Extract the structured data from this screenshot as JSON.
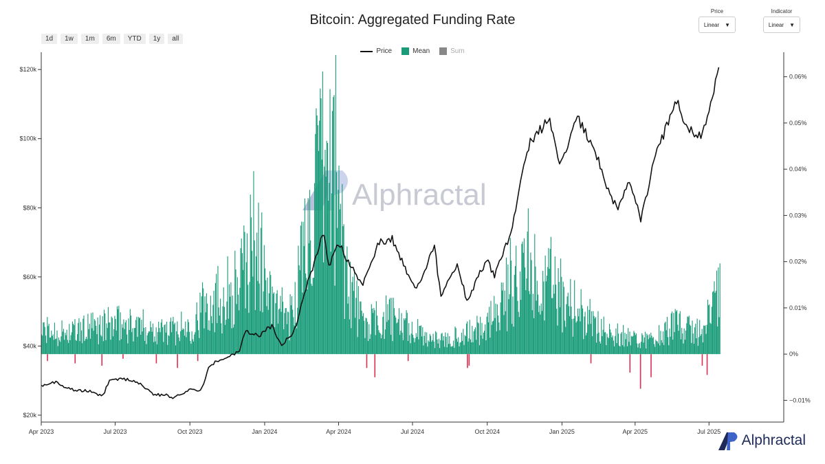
{
  "colors": {
    "price": "#111111",
    "positive": "#1a9c7a",
    "negative": "#dc2f50",
    "sum": "#888888",
    "axis": "#333333",
    "brand": "#1d2a5a"
  },
  "toolbar": {
    "ranges": [
      "1d",
      "1w",
      "1m",
      "6m",
      "YTD",
      "1y",
      "all"
    ]
  },
  "selectors": {
    "price": {
      "label": "Price",
      "value": "Linear",
      "arrow_icon": "triangle-down-icon"
    },
    "indicator": {
      "label": "Indicator",
      "value": "Linear",
      "arrow_icon": "triangle-down-icon"
    }
  },
  "watermark": {
    "text": "Alphractal"
  },
  "brand": {
    "text": "Alphractal",
    "icon": "alphractal-logo-icon"
  },
  "chart_data": {
    "type": "line+bar",
    "title": "Bitcoin: Aggregated Funding Rate",
    "legend": {
      "items": [
        "Price",
        "Mean",
        "Sum"
      ],
      "placement": "top-center",
      "inactive": [
        "Sum"
      ]
    },
    "x_ticks": [
      "Apr 2023",
      "Jul 2023",
      "Oct 2023",
      "Jan 2024",
      "Apr 2024",
      "Jul 2024",
      "Oct 2024",
      "Jan 2025",
      "Apr 2025",
      "Jul 2025"
    ],
    "x_range": [
      "2023-04-01",
      "2025-10-01"
    ],
    "y_left": {
      "ticks": [
        "$20k",
        "$40k",
        "$60k",
        "$80k",
        "$100k",
        "$120k"
      ],
      "range": [
        18000,
        125000
      ]
    },
    "y_right": {
      "ticks": [
        "−0.01%",
        "0%",
        "0.01%",
        "0.02%",
        "0.03%",
        "0.04%",
        "0.05%",
        "0.06%"
      ],
      "range": [
        -0.0147,
        0.0653
      ]
    },
    "grid": false,
    "series": [
      {
        "name": "Price",
        "kind": "line",
        "axis": "left",
        "unit": "USD",
        "points": [
          [
            "2023-04-01",
            28400
          ],
          [
            "2023-04-15",
            29800
          ],
          [
            "2023-05-01",
            28200
          ],
          [
            "2023-05-15",
            27000
          ],
          [
            "2023-06-01",
            27000
          ],
          [
            "2023-06-15",
            25300
          ],
          [
            "2023-06-25",
            30500
          ],
          [
            "2023-07-15",
            30300
          ],
          [
            "2023-08-01",
            29200
          ],
          [
            "2023-08-17",
            26000
          ],
          [
            "2023-09-01",
            25800
          ],
          [
            "2023-09-11",
            25100
          ],
          [
            "2023-10-01",
            27500
          ],
          [
            "2023-10-15",
            27000
          ],
          [
            "2023-10-25",
            34500
          ],
          [
            "2023-11-15",
            37000
          ],
          [
            "2023-12-01",
            38500
          ],
          [
            "2023-12-08",
            44000
          ],
          [
            "2023-12-25",
            43000
          ],
          [
            "2024-01-10",
            46000
          ],
          [
            "2024-01-22",
            40000
          ],
          [
            "2024-02-08",
            45000
          ],
          [
            "2024-02-15",
            52000
          ],
          [
            "2024-02-28",
            62000
          ],
          [
            "2024-03-13",
            73000
          ],
          [
            "2024-03-20",
            63000
          ],
          [
            "2024-04-01",
            70000
          ],
          [
            "2024-04-15",
            63500
          ],
          [
            "2024-05-01",
            58000
          ],
          [
            "2024-05-20",
            70000
          ],
          [
            "2024-06-06",
            71000
          ],
          [
            "2024-06-25",
            61000
          ],
          [
            "2024-07-05",
            56000
          ],
          [
            "2024-07-28",
            69000
          ],
          [
            "2024-08-05",
            54000
          ],
          [
            "2024-08-25",
            64000
          ],
          [
            "2024-09-06",
            53000
          ],
          [
            "2024-09-30",
            65000
          ],
          [
            "2024-10-10",
            60000
          ],
          [
            "2024-10-29",
            72000
          ],
          [
            "2024-11-12",
            88000
          ],
          [
            "2024-11-22",
            99000
          ],
          [
            "2024-12-17",
            106000
          ],
          [
            "2024-12-30",
            92000
          ],
          [
            "2025-01-20",
            106000
          ],
          [
            "2025-02-10",
            97000
          ],
          [
            "2025-02-28",
            84000
          ],
          [
            "2025-03-10",
            80000
          ],
          [
            "2025-03-25",
            88000
          ],
          [
            "2025-04-08",
            76500
          ],
          [
            "2025-04-25",
            94000
          ],
          [
            "2025-05-22",
            111000
          ],
          [
            "2025-06-05",
            103000
          ],
          [
            "2025-06-22",
            100000
          ],
          [
            "2025-07-03",
            109000
          ],
          [
            "2025-07-14",
            122000
          ]
        ]
      },
      {
        "name": "Mean",
        "kind": "bar",
        "axis": "right",
        "unit": "%",
        "points": [
          [
            "2023-04-01",
            0.005
          ],
          [
            "2023-05-01",
            0.0045
          ],
          [
            "2023-06-01",
            0.0055
          ],
          [
            "2023-07-01",
            0.0065
          ],
          [
            "2023-08-01",
            0.006
          ],
          [
            "2023-09-01",
            0.005
          ],
          [
            "2023-10-01",
            0.006
          ],
          [
            "2023-10-25",
            0.012
          ],
          [
            "2023-11-15",
            0.013
          ],
          [
            "2023-12-01",
            0.015
          ],
          [
            "2023-12-20",
            0.026
          ],
          [
            "2024-01-10",
            0.01
          ],
          [
            "2024-02-01",
            0.008
          ],
          [
            "2024-02-28",
            0.03
          ],
          [
            "2024-03-12",
            0.038
          ],
          [
            "2024-03-27",
            0.042
          ],
          [
            "2024-04-10",
            0.018
          ],
          [
            "2024-05-01",
            0.006
          ],
          [
            "2024-06-01",
            0.008
          ],
          [
            "2024-07-01",
            0.005
          ],
          [
            "2024-08-01",
            0.003
          ],
          [
            "2024-09-01",
            0.004
          ],
          [
            "2024-10-01",
            0.006
          ],
          [
            "2024-11-12",
            0.02
          ],
          [
            "2024-12-05",
            0.018
          ],
          [
            "2025-01-15",
            0.01
          ],
          [
            "2025-02-15",
            0.006
          ],
          [
            "2025-03-15",
            0.004
          ],
          [
            "2025-04-20",
            0.003
          ],
          [
            "2025-05-20",
            0.006
          ],
          [
            "2025-06-20",
            0.005
          ],
          [
            "2025-07-14",
            0.013
          ]
        ],
        "negatives": [
          [
            "2023-04-08",
            -0.0015
          ],
          [
            "2023-05-12",
            -0.002
          ],
          [
            "2023-06-14",
            -0.0025
          ],
          [
            "2023-07-10",
            -0.001
          ],
          [
            "2023-08-20",
            -0.002
          ],
          [
            "2023-09-15",
            -0.003
          ],
          [
            "2023-10-10",
            -0.0015
          ],
          [
            "2024-05-05",
            -0.003
          ],
          [
            "2024-05-15",
            -0.005
          ],
          [
            "2024-06-25",
            -0.0015
          ],
          [
            "2024-09-06",
            -0.003
          ],
          [
            "2024-09-08",
            -0.0025
          ],
          [
            "2025-02-05",
            -0.002
          ],
          [
            "2025-03-25",
            -0.004
          ],
          [
            "2025-04-07",
            -0.0075
          ],
          [
            "2025-04-20",
            -0.005
          ],
          [
            "2025-06-22",
            -0.0025
          ],
          [
            "2025-06-28",
            -0.0045
          ]
        ]
      },
      {
        "name": "Sum",
        "kind": "bar",
        "axis": "right",
        "visible": false,
        "points": []
      }
    ]
  }
}
